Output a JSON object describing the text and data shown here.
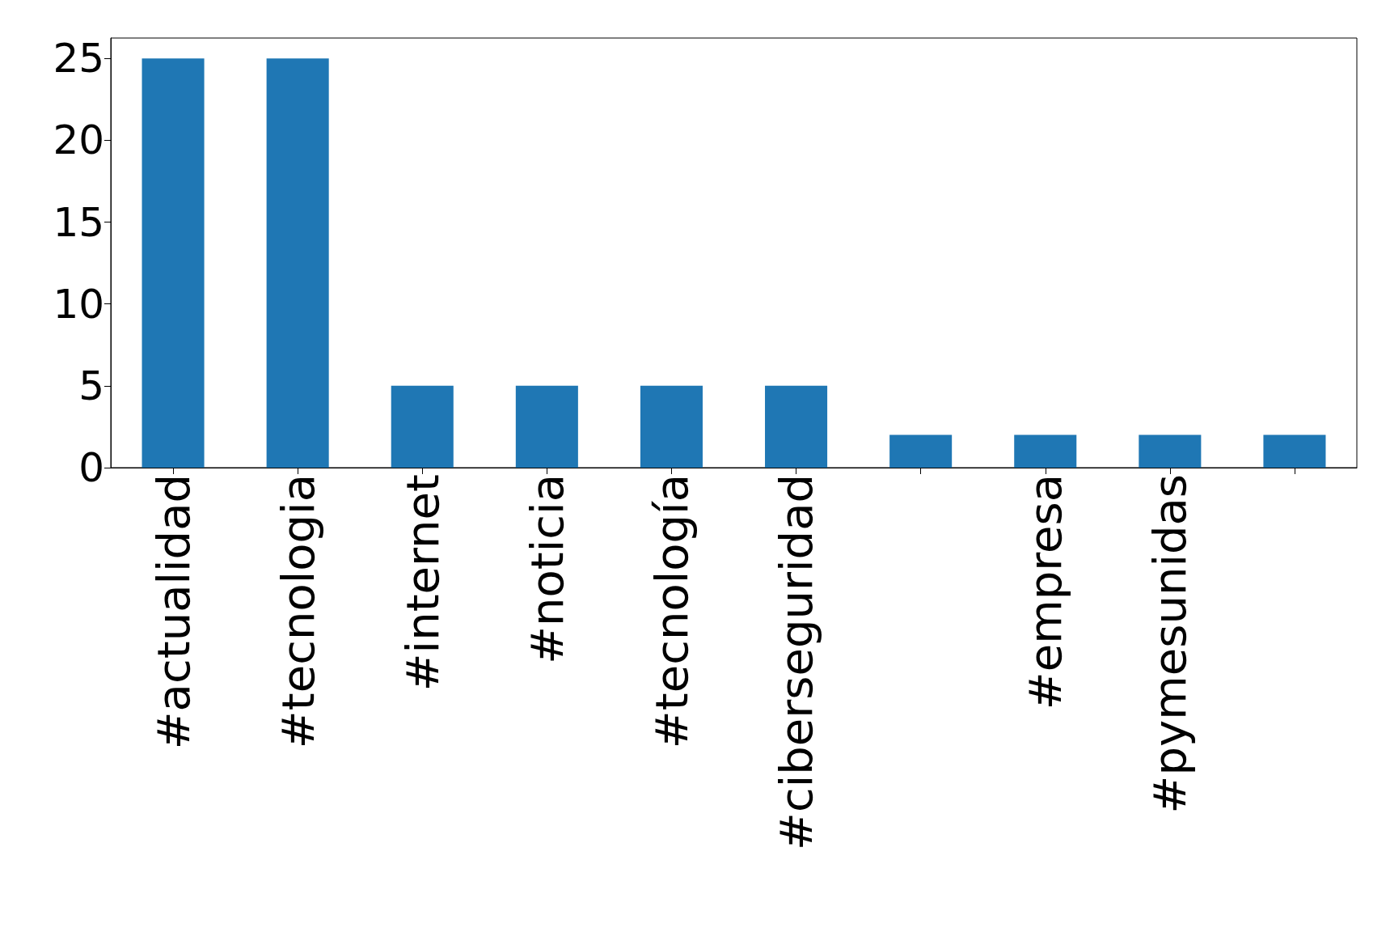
{
  "chart_data": {
    "type": "bar",
    "categories": [
      "#actualidad",
      "#tecnologia",
      "#internet",
      "#noticia",
      "#tecnología",
      "#ciberseguridad",
      null,
      "#empresa",
      "#pymesunidas",
      null
    ],
    "values": [
      25,
      25,
      5,
      5,
      5,
      5,
      2,
      2,
      2,
      2
    ],
    "color": "#1f77b4",
    "ylim": [
      0,
      26.25
    ],
    "yticks": [
      0,
      5,
      10,
      15,
      20,
      25
    ],
    "grid": false
  }
}
